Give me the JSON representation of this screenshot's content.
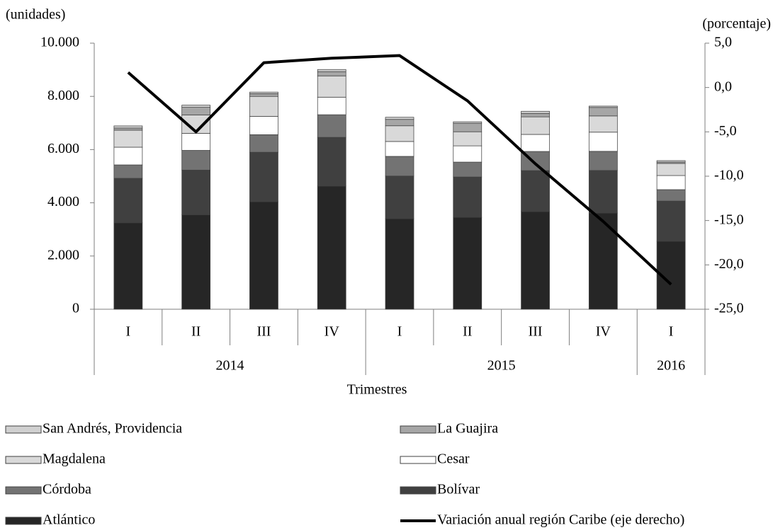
{
  "chart_data": {
    "type": "stacked-bar-line",
    "y_label": "(unidades)",
    "y2_label": "(porcentaje)",
    "x_label": "Trimestres",
    "categories": [
      [
        "2014",
        "I"
      ],
      [
        "2014",
        "II"
      ],
      [
        "2014",
        "III"
      ],
      [
        "2014",
        "IV"
      ],
      [
        "2015",
        "I"
      ],
      [
        "2015",
        "II"
      ],
      [
        "2015",
        "III"
      ],
      [
        "2015",
        "IV"
      ],
      [
        "2016",
        "I"
      ]
    ],
    "ylim": [
      0,
      10000
    ],
    "yticks": [
      0,
      {
        "value": 2000,
        "label": "2.000"
      },
      {
        "value": 4000,
        "label": "4.000"
      },
      {
        "value": 6000,
        "label": "6.000"
      },
      {
        "value": 8000,
        "label": "8.000"
      },
      {
        "value": 10000,
        "label": "10.000"
      }
    ],
    "y2lim": [
      -25,
      5
    ],
    "y2ticks": [
      {
        "value": -25,
        "label": "-25,0"
      },
      {
        "value": -20,
        "label": "-20,0"
      },
      {
        "value": -15,
        "label": "-15,0"
      },
      {
        "value": -10,
        "label": "-10,0"
      },
      {
        "value": -5,
        "label": "-5,0"
      },
      {
        "value": 0,
        "label": "0,0"
      },
      {
        "value": 5,
        "label": "5,0"
      }
    ],
    "series": [
      {
        "name": "Atlántico",
        "color": "#262626",
        "values": [
          3250,
          3550,
          4040,
          4630,
          3405,
          3455,
          3670,
          3615,
          2555
        ]
      },
      {
        "name": "Bolívar",
        "color": "#404040",
        "values": [
          1670,
          1680,
          1860,
          1830,
          1600,
          1515,
          1540,
          1600,
          1510
        ]
      },
      {
        "name": "Córdoba",
        "color": "#737373",
        "values": [
          505,
          740,
          660,
          850,
          740,
          560,
          720,
          720,
          430
        ]
      },
      {
        "name": "Cesar",
        "color": "#ffffff",
        "values": [
          665,
          640,
          690,
          660,
          560,
          610,
          640,
          720,
          530
        ]
      },
      {
        "name": "Magdalena",
        "color": "#d9d9d9",
        "values": [
          640,
          690,
          750,
          800,
          590,
          530,
          660,
          610,
          455
        ]
      },
      {
        "name": "La Guajira",
        "color": "#a6a6a6",
        "values": [
          80,
          290,
          100,
          160,
          240,
          320,
          130,
          320,
          50
        ]
      },
      {
        "name": "San Andrés, Providencia",
        "color": "#d0d0d0",
        "values": [
          80,
          80,
          60,
          80,
          80,
          55,
          80,
          50,
          55
        ]
      },
      {
        "name": "Variación anual región Caribe (eje derecho)",
        "color": "#000000",
        "axis": "y2",
        "type": "line",
        "values": [
          1.7,
          -5.0,
          2.8,
          3.3,
          3.6,
          -1.5,
          -8.6,
          -15.1,
          -22.2
        ]
      }
    ]
  }
}
